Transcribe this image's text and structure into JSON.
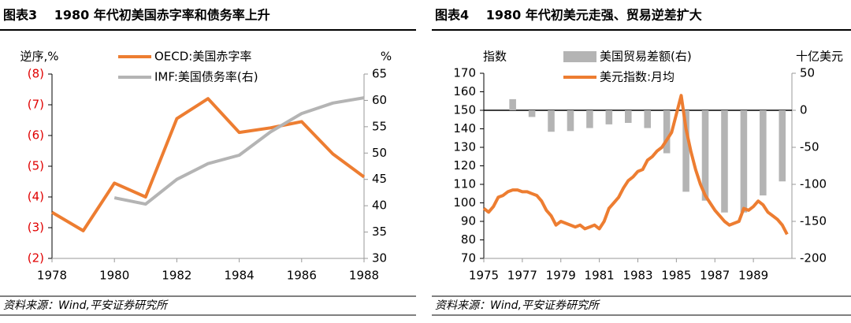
{
  "chart_data": [
    {
      "type": "line",
      "title": "图表3　 1980 年代初美国赤字率和债务率上升",
      "source": "资料来源：Wind,平安证券研究所",
      "y_label": "逆序,%",
      "y2_label": "%",
      "x": [
        1978,
        1979,
        1980,
        1981,
        1982,
        1983,
        1984,
        1985,
        1986,
        1987,
        1988
      ],
      "xlim": [
        1978,
        1988
      ],
      "xticks": [
        1978,
        1980,
        1982,
        1984,
        1986,
        1988
      ],
      "ylim": [
        2,
        8
      ],
      "yticks": [
        {
          "value": 8,
          "label": "(8)"
        },
        {
          "value": 7,
          "label": "(7)"
        },
        {
          "value": 6,
          "label": "(6)"
        },
        {
          "value": 5,
          "label": "(5)"
        },
        {
          "value": 4,
          "label": "(4)"
        },
        {
          "value": 3,
          "label": "(3)"
        },
        {
          "value": 2,
          "label": "(2)"
        }
      ],
      "ytick_color": "#e00000",
      "y2lim": [
        30,
        65
      ],
      "y2ticks": [
        65,
        60,
        55,
        50,
        45,
        40,
        35,
        30
      ],
      "series": [
        {
          "name": "OECD:美国赤字率",
          "color": "#ed7d31",
          "values": [
            3.5,
            2.9,
            4.45,
            4.0,
            6.55,
            7.2,
            6.1,
            6.25,
            6.45,
            5.4,
            4.65
          ]
        },
        {
          "name": "IMF:美国债务率(右)",
          "color": "#b4b4b4",
          "axis": "y2",
          "values": [
            null,
            null,
            41.5,
            40.3,
            45.0,
            48.0,
            49.6,
            54.0,
            57.5,
            59.5,
            60.5
          ]
        }
      ]
    },
    {
      "type": "bar_line",
      "title": "图表4　 1980 年代初美元走强、贸易逆差扩大",
      "source": "资料来源：Wind,平安证券研究所",
      "y_label": "指数",
      "y2_label": "十亿美元",
      "xlim": [
        1975,
        1991
      ],
      "xticks": [
        1975,
        1977,
        1979,
        1981,
        1983,
        1985,
        1987,
        1989
      ],
      "ylim": [
        70,
        170
      ],
      "yticks": [
        170,
        160,
        150,
        140,
        130,
        120,
        110,
        100,
        90,
        80,
        70
      ],
      "y2lim": [
        -200,
        50
      ],
      "y2ticks": [
        50,
        0,
        -50,
        -100,
        -150,
        -200
      ],
      "series": [
        {
          "name": "美国贸易差额(右)",
          "type": "bar",
          "color": "#b4b4b4",
          "axis": "y2",
          "x": [
            1976,
            1977,
            1978,
            1979,
            1980,
            1981,
            1982,
            1983,
            1984,
            1985,
            1986,
            1987,
            1988,
            1989,
            1990
          ],
          "values": [
            15,
            -9,
            -29,
            -28,
            -24,
            -19,
            -17,
            -24,
            -58,
            -110,
            -122,
            -138,
            -138,
            -115,
            -96
          ]
        },
        {
          "name": "美元指数:月均",
          "type": "line",
          "color": "#ed7d31",
          "x": [
            1975,
            1975.25,
            1975.5,
            1975.75,
            1976,
            1976.25,
            1976.5,
            1976.75,
            1977,
            1977.25,
            1977.5,
            1977.75,
            1978,
            1978.25,
            1978.5,
            1978.75,
            1979,
            1979.25,
            1979.5,
            1979.75,
            1980,
            1980.25,
            1980.5,
            1980.75,
            1981,
            1981.25,
            1981.5,
            1981.75,
            1982,
            1982.25,
            1982.5,
            1982.75,
            1983,
            1983.25,
            1983.5,
            1983.75,
            1984,
            1984.25,
            1984.5,
            1984.75,
            1985,
            1985.25,
            1985.5,
            1985.75,
            1986,
            1986.25,
            1986.5,
            1986.75,
            1987,
            1987.25,
            1987.5,
            1987.75,
            1988,
            1988.25,
            1988.5,
            1988.75,
            1989,
            1989.25,
            1989.5,
            1989.75,
            1990,
            1990.25,
            1990.5,
            1990.75
          ],
          "values": [
            97,
            95,
            98,
            103,
            104,
            106,
            107,
            107,
            106,
            106,
            105,
            104,
            101,
            96,
            93,
            88,
            90,
            89,
            88,
            87,
            88,
            86,
            87,
            88,
            86,
            90,
            97,
            100,
            103,
            108,
            112,
            114,
            117,
            118,
            123,
            125,
            128,
            130,
            134,
            138,
            148,
            158,
            140,
            128,
            118,
            110,
            104,
            100,
            96,
            93,
            90,
            88,
            89,
            90,
            97,
            96,
            98,
            101,
            99,
            95,
            93,
            91,
            88,
            83
          ]
        }
      ]
    }
  ]
}
